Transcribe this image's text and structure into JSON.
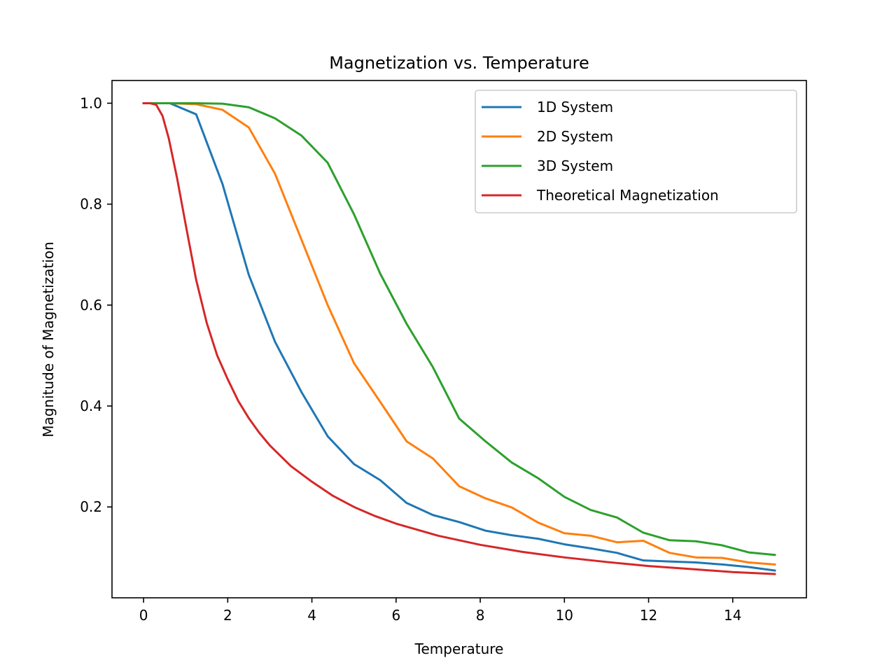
{
  "chart_data": {
    "type": "line",
    "title": "Magnetization vs. Temperature",
    "xlabel": "Temperature",
    "ylabel": "Magnitude of Magnetization",
    "xlim": [
      -0.75,
      15.75
    ],
    "ylim": [
      0.02,
      1.045
    ],
    "xticks": [
      0,
      2,
      4,
      6,
      8,
      10,
      12,
      14
    ],
    "yticks": [
      0.2,
      0.4,
      0.6,
      0.8,
      1.0
    ],
    "xtick_labels": [
      "0",
      "2",
      "4",
      "6",
      "8",
      "10",
      "12",
      "14"
    ],
    "ytick_labels": [
      "0.2",
      "0.4",
      "0.6",
      "0.8",
      "1.0"
    ],
    "grid": false,
    "legend_position": "top-right",
    "series": [
      {
        "name": "1D System",
        "color": "#1f77b4",
        "points": [
          [
            0,
            1.0
          ],
          [
            0.625,
            1.0
          ],
          [
            1.25,
            0.978
          ],
          [
            1.875,
            0.84
          ],
          [
            2.5,
            0.66
          ],
          [
            3.125,
            0.527
          ],
          [
            3.75,
            0.428
          ],
          [
            4.375,
            0.34
          ],
          [
            5.0,
            0.285
          ],
          [
            5.625,
            0.253
          ],
          [
            6.25,
            0.208
          ],
          [
            6.875,
            0.184
          ],
          [
            7.5,
            0.17
          ],
          [
            8.125,
            0.153
          ],
          [
            8.75,
            0.144
          ],
          [
            9.375,
            0.137
          ],
          [
            10.0,
            0.126
          ],
          [
            10.625,
            0.118
          ],
          [
            11.25,
            0.109
          ],
          [
            11.875,
            0.094
          ],
          [
            12.5,
            0.092
          ],
          [
            13.125,
            0.09
          ],
          [
            13.75,
            0.086
          ],
          [
            14.375,
            0.081
          ],
          [
            15.0,
            0.074
          ]
        ]
      },
      {
        "name": "2D System",
        "color": "#ff7f0e",
        "points": [
          [
            0,
            1.0
          ],
          [
            0.625,
            1.0
          ],
          [
            1.25,
            0.998
          ],
          [
            1.875,
            0.987
          ],
          [
            2.5,
            0.952
          ],
          [
            3.125,
            0.86
          ],
          [
            3.75,
            0.73
          ],
          [
            4.375,
            0.6
          ],
          [
            5.0,
            0.485
          ],
          [
            5.625,
            0.408
          ],
          [
            6.25,
            0.33
          ],
          [
            6.875,
            0.296
          ],
          [
            7.5,
            0.241
          ],
          [
            8.125,
            0.217
          ],
          [
            8.75,
            0.199
          ],
          [
            9.375,
            0.169
          ],
          [
            10.0,
            0.148
          ],
          [
            10.625,
            0.143
          ],
          [
            11.25,
            0.13
          ],
          [
            11.875,
            0.133
          ],
          [
            12.5,
            0.109
          ],
          [
            13.125,
            0.1
          ],
          [
            13.75,
            0.099
          ],
          [
            14.375,
            0.09
          ],
          [
            15.0,
            0.086
          ]
        ]
      },
      {
        "name": "3D System",
        "color": "#2ca02c",
        "points": [
          [
            0,
            1.0
          ],
          [
            0.625,
            1.0
          ],
          [
            1.25,
            1.0
          ],
          [
            1.875,
            0.999
          ],
          [
            2.5,
            0.992
          ],
          [
            3.125,
            0.97
          ],
          [
            3.75,
            0.936
          ],
          [
            4.375,
            0.882
          ],
          [
            5.0,
            0.78
          ],
          [
            5.625,
            0.662
          ],
          [
            6.25,
            0.563
          ],
          [
            6.875,
            0.477
          ],
          [
            7.5,
            0.375
          ],
          [
            8.125,
            0.33
          ],
          [
            8.75,
            0.288
          ],
          [
            9.375,
            0.257
          ],
          [
            10.0,
            0.22
          ],
          [
            10.625,
            0.194
          ],
          [
            11.25,
            0.179
          ],
          [
            11.875,
            0.149
          ],
          [
            12.5,
            0.134
          ],
          [
            13.125,
            0.132
          ],
          [
            13.75,
            0.124
          ],
          [
            14.375,
            0.11
          ],
          [
            15.0,
            0.105
          ]
        ]
      },
      {
        "name": "Theoretical Magnetization",
        "color": "#d62728",
        "points": [
          [
            0,
            1.0
          ],
          [
            0.15,
            1.0
          ],
          [
            0.3,
            0.997
          ],
          [
            0.45,
            0.975
          ],
          [
            0.6,
            0.93
          ],
          [
            0.8,
            0.85
          ],
          [
            1.0,
            0.76
          ],
          [
            1.25,
            0.65
          ],
          [
            1.5,
            0.565
          ],
          [
            1.75,
            0.5
          ],
          [
            2.0,
            0.453
          ],
          [
            2.25,
            0.41
          ],
          [
            2.5,
            0.376
          ],
          [
            2.75,
            0.347
          ],
          [
            3.0,
            0.322
          ],
          [
            3.5,
            0.281
          ],
          [
            4.0,
            0.25
          ],
          [
            4.5,
            0.222
          ],
          [
            5.0,
            0.2
          ],
          [
            5.5,
            0.182
          ],
          [
            6.0,
            0.167
          ],
          [
            7.0,
            0.143
          ],
          [
            8.0,
            0.125
          ],
          [
            9.0,
            0.111
          ],
          [
            10.0,
            0.1
          ],
          [
            11.0,
            0.091
          ],
          [
            12.0,
            0.083
          ],
          [
            13.0,
            0.077
          ],
          [
            14.0,
            0.071
          ],
          [
            15.0,
            0.067
          ]
        ]
      }
    ]
  }
}
